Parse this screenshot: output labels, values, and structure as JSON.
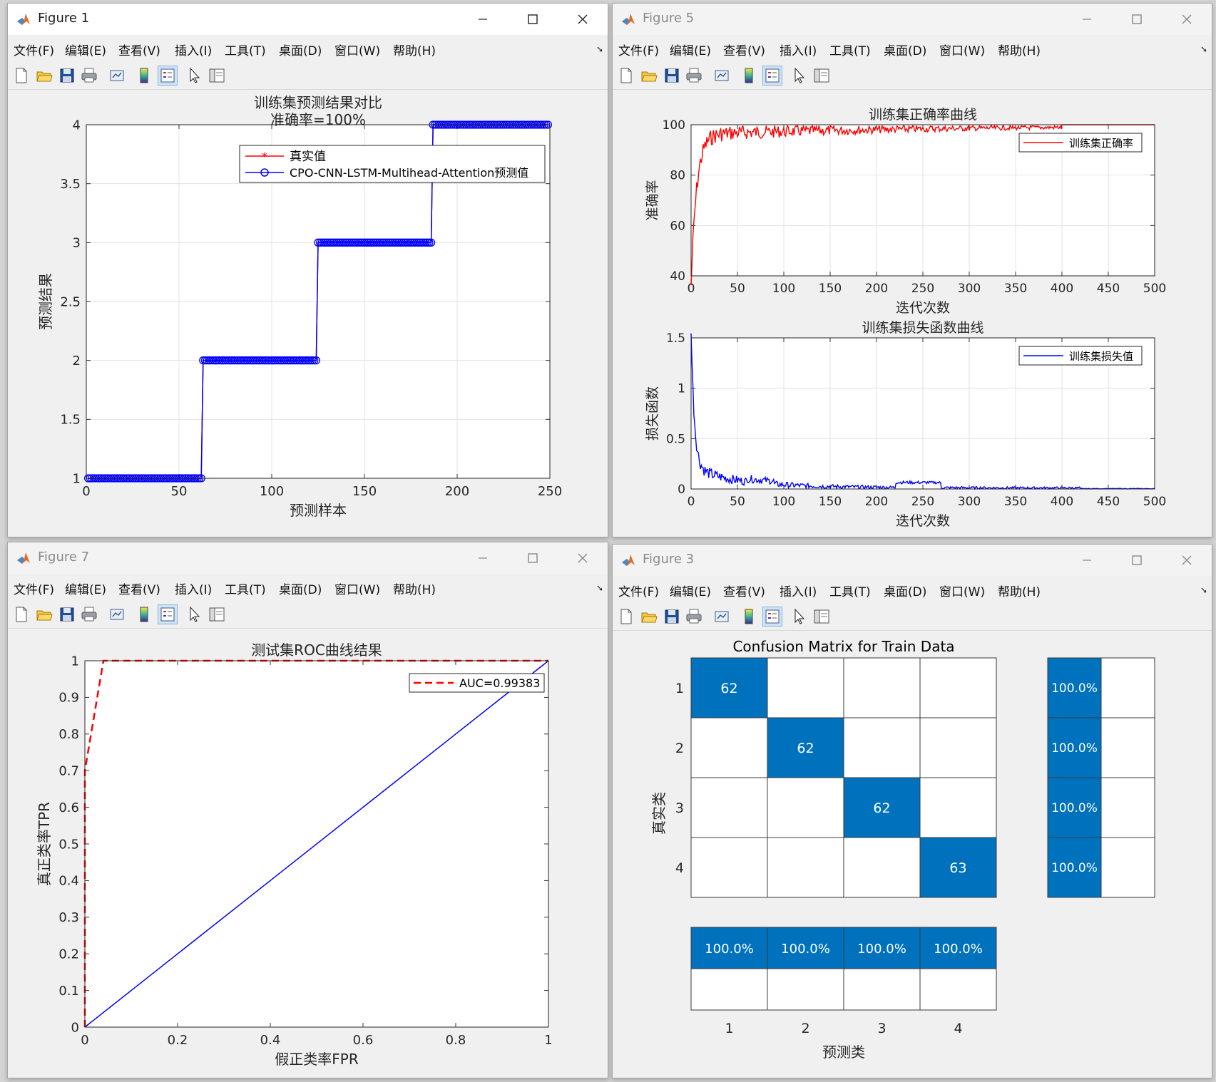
{
  "menu": [
    "文件(F)",
    "编辑(E)",
    "查看(V)",
    "插入(I)",
    "工具(T)",
    "桌面(D)",
    "窗口(W)",
    "帮助(H)"
  ],
  "toolbar_icons": [
    "new-figure-icon",
    "open-file-icon",
    "save-icon",
    "print-icon",
    "link-plot-icon",
    "colorbar-icon",
    "legend-icon",
    "pointer-icon",
    "property-editor-icon"
  ],
  "windows": {
    "fig1": {
      "title": "Figure 1",
      "chart_data": {
        "type": "line",
        "title": "训练集预测结果对比",
        "subtitle": "准确率=100%",
        "xlabel": "预测样本",
        "ylabel": "预测结果",
        "xlim": [
          0,
          250
        ],
        "ylim": [
          1,
          4
        ],
        "xticks": [
          0,
          50,
          100,
          150,
          200,
          250
        ],
        "yticks": [
          1,
          1.5,
          2,
          2.5,
          3,
          3.5,
          4
        ],
        "ytick_labels": [
          "1",
          "1.5",
          "2",
          "2.5",
          "3",
          "3.5",
          "4"
        ],
        "legend_position": "top-right",
        "grid": true,
        "segments": [
          {
            "class": 1,
            "x_start": 1,
            "x_end": 62
          },
          {
            "class": 2,
            "x_start": 63,
            "x_end": 124
          },
          {
            "class": 3,
            "x_start": 125,
            "x_end": 186
          },
          {
            "class": 4,
            "x_start": 187,
            "x_end": 249
          }
        ],
        "series": [
          {
            "name": "真实值",
            "color": "#ff0000",
            "marker": "star"
          },
          {
            "name": "CPO-CNN-LSTM-Multihead-Attention预测值",
            "color": "#0000ff",
            "marker": "circle"
          }
        ]
      }
    },
    "fig5": {
      "title": "Figure 5",
      "charts": [
        {
          "type": "line",
          "title": "训练集正确率曲线",
          "xlabel": "迭代次数",
          "ylabel": "准确率",
          "xlim": [
            0,
            500
          ],
          "ylim": [
            40,
            100
          ],
          "xticks": [
            0,
            50,
            100,
            150,
            200,
            250,
            300,
            350,
            400,
            450,
            500
          ],
          "yticks": [
            40,
            60,
            80,
            100
          ],
          "ytick_labels": [
            "40",
            "60",
            "80",
            "100"
          ],
          "legend_position": "top-right",
          "grid": true,
          "series": [
            {
              "name": "训练集正确率",
              "color": "#ff0000"
            }
          ],
          "trend": {
            "start": 40,
            "plateau": 100,
            "noise_until": 400,
            "points": 500
          }
        },
        {
          "type": "line",
          "title": "训练集损失函数曲线",
          "xlabel": "迭代次数",
          "ylabel": "损失函数",
          "xlim": [
            0,
            500
          ],
          "ylim": [
            0,
            1.5
          ],
          "xticks": [
            0,
            50,
            100,
            150,
            200,
            250,
            300,
            350,
            400,
            450,
            500
          ],
          "yticks": [
            0,
            0.5,
            1,
            1.5
          ],
          "ytick_labels": [
            "0",
            "0.5",
            "1",
            "1.5"
          ],
          "legend_position": "top-right",
          "grid": true,
          "series": [
            {
              "name": "训练集损失值",
              "color": "#0000ff"
            }
          ],
          "trend": {
            "start": 1.38,
            "end": 0.0,
            "points": 500
          }
        }
      ]
    },
    "fig7": {
      "title": "Figure 7",
      "chart_data": {
        "type": "line",
        "title": "测试集ROC曲线结果",
        "xlabel": "假正类率FPR",
        "ylabel": "真正类率TPR",
        "xlim": [
          0,
          1
        ],
        "ylim": [
          0,
          1
        ],
        "xticks": [
          0,
          0.2,
          0.4,
          0.6,
          0.8,
          1
        ],
        "xtick_labels": [
          "0",
          "0.2",
          "0.4",
          "0.6",
          "0.8",
          "1"
        ],
        "yticks": [
          0,
          0.1,
          0.2,
          0.3,
          0.4,
          0.5,
          0.6,
          0.7,
          0.8,
          0.9,
          1
        ],
        "ytick_labels": [
          "0",
          "0.1",
          "0.2",
          "0.3",
          "0.4",
          "0.5",
          "0.6",
          "0.7",
          "0.8",
          "0.9",
          "1"
        ],
        "legend_position": "top-right",
        "grid": false,
        "series": [
          {
            "name": "AUC=0.99383",
            "color": "#ff0000",
            "style": "dashed",
            "x": [
              0,
              0,
              0,
              0.04,
              1
            ],
            "y": [
              0,
              0.5,
              0.7,
              1,
              1
            ]
          },
          {
            "name": "",
            "color": "#0000ff",
            "style": "solid",
            "x": [
              0,
              1
            ],
            "y": [
              0,
              1
            ]
          }
        ]
      }
    },
    "fig3": {
      "title": "Figure 3",
      "chart_data": {
        "type": "heatmap",
        "title": "Confusion Matrix for Train Data",
        "xlabel": "预测类",
        "ylabel": "真实类",
        "classes": [
          "1",
          "2",
          "3",
          "4"
        ],
        "matrix": [
          [
            62,
            0,
            0,
            0
          ],
          [
            0,
            62,
            0,
            0
          ],
          [
            0,
            0,
            62,
            0
          ],
          [
            0,
            0,
            0,
            63
          ]
        ],
        "row_summary": [
          "100.0%",
          "100.0%",
          "100.0%",
          "100.0%"
        ],
        "column_summary": [
          "100.0%",
          "100.0%",
          "100.0%",
          "100.0%"
        ],
        "fill_color": "#0072bd"
      }
    }
  }
}
